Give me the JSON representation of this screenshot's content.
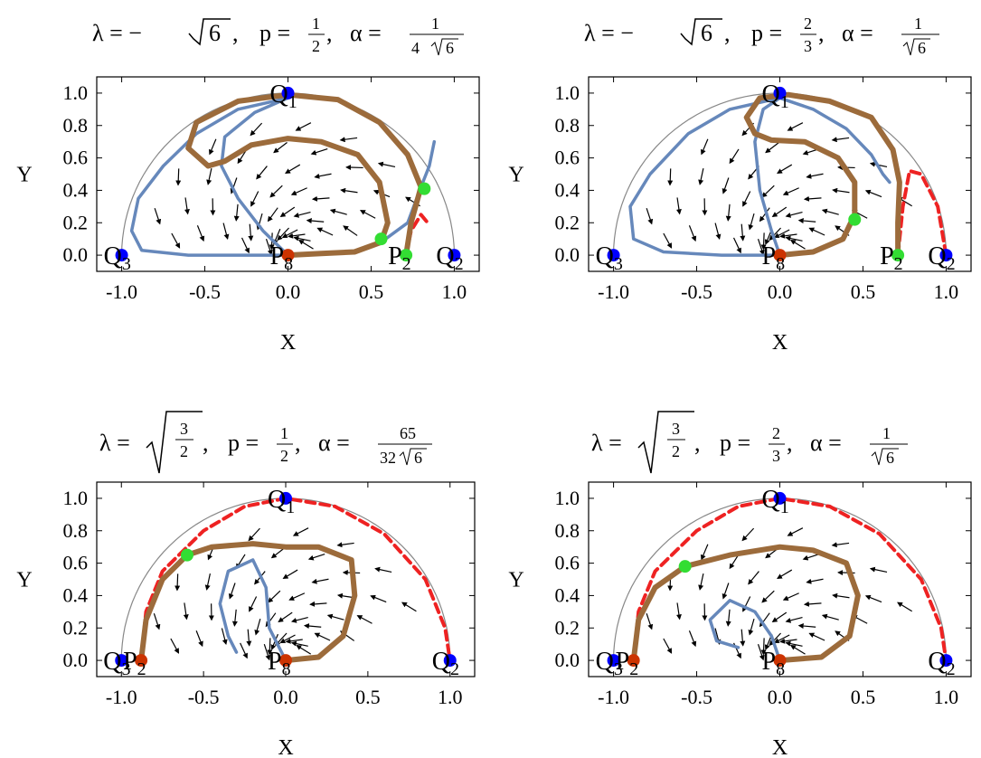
{
  "chart_data": [
    {
      "type": "streamplot",
      "title": {
        "lambda": "λ = −",
        "root": "6",
        "comma1": ",",
        "p": "p =",
        "p_num": "1",
        "p_den": "2",
        "comma2": ",",
        "alpha": "α =",
        "a_num": "1",
        "a_den_pre": "4",
        "a_den_root": "6"
      },
      "xlabel": "X",
      "ylabel": "Y",
      "xlim": [
        -1.15,
        1.15
      ],
      "ylim": [
        -0.1,
        1.1
      ],
      "xticks": [
        "-1.0",
        "-0.5",
        "0.0",
        "0.5",
        "1.0"
      ],
      "yticks": [
        "0.0",
        "0.2",
        "0.4",
        "0.6",
        "0.8",
        "1.0"
      ],
      "points": [
        {
          "label": "Q",
          "sub": "1",
          "x": 0.0,
          "y": 1.0,
          "color": "#0000ff"
        },
        {
          "label": "Q",
          "sub": "3",
          "x": -1.0,
          "y": 0.0,
          "color": "#0000ff"
        },
        {
          "label": "Q",
          "sub": "2",
          "x": 1.0,
          "y": 0.0,
          "color": "#0000ff"
        },
        {
          "label": "P",
          "sub": "8",
          "x": 0.0,
          "y": 0.0,
          "color": "#cc3300"
        },
        {
          "label": "P",
          "sub": "2",
          "x": 0.71,
          "y": 0.0,
          "color": "#33dd33"
        },
        {
          "label": "",
          "sub": "",
          "x": 0.56,
          "y": 0.1,
          "color": "#33dd33"
        },
        {
          "label": "",
          "sub": "",
          "x": 0.82,
          "y": 0.41,
          "color": "#33dd33"
        }
      ],
      "brown": [
        [
          0.0,
          0.0
        ],
        [
          0.2,
          0.01
        ],
        [
          0.4,
          0.02
        ],
        [
          0.56,
          0.08
        ],
        [
          0.6,
          0.2
        ],
        [
          0.55,
          0.45
        ],
        [
          0.42,
          0.62
        ],
        [
          0.2,
          0.7
        ],
        [
          0.0,
          0.72
        ],
        [
          -0.22,
          0.68
        ],
        [
          -0.38,
          0.58
        ],
        [
          -0.48,
          0.55
        ],
        [
          -0.6,
          0.66
        ],
        [
          -0.55,
          0.82
        ],
        [
          -0.3,
          0.95
        ],
        [
          0.0,
          0.99
        ],
        [
          0.3,
          0.96
        ],
        [
          0.55,
          0.82
        ],
        [
          0.72,
          0.62
        ],
        [
          0.8,
          0.42
        ],
        [
          0.74,
          0.2
        ],
        [
          0.71,
          0.0
        ]
      ],
      "blue": [
        [
          0.0,
          0.0
        ],
        [
          -0.3,
          0.0
        ],
        [
          -0.6,
          0.0
        ],
        [
          -0.88,
          0.03
        ],
        [
          -0.94,
          0.15
        ],
        [
          -0.9,
          0.35
        ],
        [
          -0.75,
          0.55
        ],
        [
          -0.55,
          0.75
        ],
        [
          -0.3,
          0.9
        ],
        [
          0.0,
          0.97
        ],
        [
          -0.2,
          0.88
        ],
        [
          -0.38,
          0.73
        ],
        [
          -0.4,
          0.55
        ],
        [
          -0.3,
          0.35
        ],
        [
          -0.15,
          0.15
        ],
        [
          0.0,
          0.0
        ]
      ],
      "blue2": [
        [
          0.56,
          0.08
        ],
        [
          0.72,
          0.2
        ],
        [
          0.8,
          0.42
        ],
        [
          0.85,
          0.55
        ],
        [
          0.88,
          0.7
        ]
      ],
      "red": [
        [
          0.71,
          0.0
        ],
        [
          0.74,
          0.15
        ],
        [
          0.8,
          0.25
        ],
        [
          0.84,
          0.2
        ]
      ]
    },
    {
      "type": "streamplot",
      "title": {
        "lambda": "λ = −",
        "root": "6",
        "comma1": ",",
        "p": "p =",
        "p_num": "2",
        "p_den": "3",
        "comma2": ",",
        "alpha": "α =",
        "a_num": "1",
        "a_den_pre": "",
        "a_den_root": "6"
      },
      "xlabel": "X",
      "ylabel": "Y",
      "xlim": [
        -1.15,
        1.15
      ],
      "ylim": [
        -0.1,
        1.1
      ],
      "xticks": [
        "-1.0",
        "-0.5",
        "0.0",
        "0.5",
        "1.0"
      ],
      "yticks": [
        "0.0",
        "0.2",
        "0.4",
        "0.6",
        "0.8",
        "1.0"
      ],
      "points": [
        {
          "label": "Q",
          "sub": "1",
          "x": 0.0,
          "y": 1.0,
          "color": "#0000ff"
        },
        {
          "label": "Q",
          "sub": "3",
          "x": -1.0,
          "y": 0.0,
          "color": "#0000ff"
        },
        {
          "label": "Q",
          "sub": "2",
          "x": 1.0,
          "y": 0.0,
          "color": "#0000ff"
        },
        {
          "label": "P",
          "sub": "8",
          "x": 0.0,
          "y": 0.0,
          "color": "#cc3300"
        },
        {
          "label": "P",
          "sub": "2",
          "x": 0.71,
          "y": 0.0,
          "color": "#33dd33"
        },
        {
          "label": "",
          "sub": "",
          "x": 0.45,
          "y": 0.22,
          "color": "#33dd33"
        }
      ],
      "brown": [
        [
          0.0,
          0.0
        ],
        [
          0.2,
          0.02
        ],
        [
          0.38,
          0.1
        ],
        [
          0.45,
          0.25
        ],
        [
          0.45,
          0.45
        ],
        [
          0.35,
          0.6
        ],
        [
          0.15,
          0.7
        ],
        [
          -0.05,
          0.71
        ],
        [
          -0.15,
          0.75
        ],
        [
          -0.2,
          0.85
        ],
        [
          -0.12,
          0.97
        ],
        [
          0.05,
          0.99
        ],
        [
          0.3,
          0.95
        ],
        [
          0.55,
          0.85
        ],
        [
          0.68,
          0.65
        ],
        [
          0.72,
          0.45
        ],
        [
          0.71,
          0.2
        ],
        [
          0.71,
          0.0
        ]
      ],
      "blue": [
        [
          0.0,
          0.0
        ],
        [
          -0.35,
          0.0
        ],
        [
          -0.7,
          0.02
        ],
        [
          -0.88,
          0.1
        ],
        [
          -0.9,
          0.3
        ],
        [
          -0.78,
          0.5
        ],
        [
          -0.55,
          0.75
        ],
        [
          -0.3,
          0.9
        ],
        [
          0.0,
          0.97
        ],
        [
          -0.1,
          0.9
        ],
        [
          -0.15,
          0.7
        ],
        [
          -0.12,
          0.4
        ],
        [
          -0.05,
          0.15
        ],
        [
          0.0,
          0.0
        ]
      ],
      "blue2": [
        [
          0.0,
          0.97
        ],
        [
          0.2,
          0.9
        ],
        [
          0.4,
          0.78
        ],
        [
          0.55,
          0.62
        ],
        [
          0.62,
          0.5
        ],
        [
          0.66,
          0.45
        ]
      ],
      "red": [
        [
          0.71,
          0.0
        ],
        [
          0.74,
          0.3
        ],
        [
          0.78,
          0.52
        ],
        [
          0.85,
          0.5
        ],
        [
          0.95,
          0.3
        ],
        [
          1.0,
          0.0
        ]
      ]
    },
    {
      "type": "streamplot",
      "title": {
        "lambda": "λ =",
        "root_num": "3",
        "root_den": "2",
        "comma1": ",",
        "p": "p =",
        "p_num": "1",
        "p_den": "2",
        "comma2": ",",
        "alpha": "α =",
        "a_num": "65",
        "a_den_pre": "32",
        "a_den_root": "6"
      },
      "xlabel": "X",
      "ylabel": "Y",
      "xlim": [
        -1.15,
        1.15
      ],
      "ylim": [
        -0.1,
        1.1
      ],
      "xticks": [
        "-1.0",
        "-0.5",
        "0.0",
        "0.5",
        "1.0"
      ],
      "yticks": [
        "0.0",
        "0.2",
        "0.4",
        "0.6",
        "0.8",
        "1.0"
      ],
      "points": [
        {
          "label": "Q",
          "sub": "1",
          "x": 0.0,
          "y": 1.0,
          "color": "#0000ff"
        },
        {
          "label": "Q",
          "sub": "3",
          "x": -1.0,
          "y": 0.0,
          "color": "#0000ff"
        },
        {
          "label": "Q",
          "sub": "2",
          "x": 1.0,
          "y": 0.0,
          "color": "#0000ff"
        },
        {
          "label": "P",
          "sub": "8",
          "x": 0.0,
          "y": 0.0,
          "color": "#cc3300"
        },
        {
          "label": "P",
          "sub": "2",
          "x": -0.88,
          "y": 0.0,
          "color": "#cc3300"
        },
        {
          "label": "",
          "sub": "",
          "x": -0.6,
          "y": 0.65,
          "color": "#33dd33"
        }
      ],
      "brown": [
        [
          0.0,
          0.0
        ],
        [
          0.2,
          0.02
        ],
        [
          0.35,
          0.15
        ],
        [
          0.42,
          0.4
        ],
        [
          0.4,
          0.62
        ],
        [
          0.2,
          0.7
        ],
        [
          0.0,
          0.7
        ],
        [
          -0.2,
          0.72
        ],
        [
          -0.45,
          0.7
        ],
        [
          -0.6,
          0.65
        ],
        [
          -0.75,
          0.5
        ],
        [
          -0.85,
          0.25
        ],
        [
          -0.88,
          0.0
        ]
      ],
      "blue": [
        [
          0.0,
          0.0
        ],
        [
          -0.1,
          0.2
        ],
        [
          -0.12,
          0.45
        ],
        [
          -0.2,
          0.62
        ],
        [
          -0.35,
          0.55
        ],
        [
          -0.4,
          0.35
        ],
        [
          -0.35,
          0.15
        ],
        [
          -0.3,
          0.05
        ]
      ],
      "blue2": [],
      "red": [
        [
          -0.88,
          0.0
        ],
        [
          -0.85,
          0.3
        ],
        [
          -0.75,
          0.55
        ],
        [
          -0.5,
          0.8
        ],
        [
          -0.25,
          0.95
        ],
        [
          0.0,
          1.0
        ],
        [
          0.3,
          0.95
        ],
        [
          0.6,
          0.78
        ],
        [
          0.85,
          0.5
        ],
        [
          0.97,
          0.2
        ],
        [
          1.0,
          0.0
        ]
      ]
    },
    {
      "type": "streamplot",
      "title": {
        "lambda": "λ =",
        "root_num": "3",
        "root_den": "2",
        "comma1": ",",
        "p": "p =",
        "p_num": "2",
        "p_den": "3",
        "comma2": ",",
        "alpha": "α =",
        "a_num": "1",
        "a_den_pre": "",
        "a_den_root": "6"
      },
      "xlabel": "X",
      "ylabel": "Y",
      "xlim": [
        -1.15,
        1.15
      ],
      "ylim": [
        -0.1,
        1.1
      ],
      "xticks": [
        "-1.0",
        "-0.5",
        "0.0",
        "0.5",
        "1.0"
      ],
      "yticks": [
        "0.0",
        "0.2",
        "0.4",
        "0.6",
        "0.8",
        "1.0"
      ],
      "points": [
        {
          "label": "Q",
          "sub": "1",
          "x": 0.0,
          "y": 1.0,
          "color": "#0000ff"
        },
        {
          "label": "Q",
          "sub": "3",
          "x": -1.0,
          "y": 0.0,
          "color": "#0000ff"
        },
        {
          "label": "Q",
          "sub": "2",
          "x": 1.0,
          "y": 0.0,
          "color": "#0000ff"
        },
        {
          "label": "P",
          "sub": "8",
          "x": 0.0,
          "y": 0.0,
          "color": "#cc3300"
        },
        {
          "label": "P",
          "sub": "2",
          "x": -0.88,
          "y": 0.0,
          "color": "#cc3300"
        },
        {
          "label": "",
          "sub": "",
          "x": -0.57,
          "y": 0.58,
          "color": "#33dd33"
        }
      ],
      "brown": [
        [
          0.0,
          0.0
        ],
        [
          0.25,
          0.02
        ],
        [
          0.42,
          0.15
        ],
        [
          0.47,
          0.4
        ],
        [
          0.4,
          0.6
        ],
        [
          0.2,
          0.68
        ],
        [
          0.0,
          0.7
        ],
        [
          -0.3,
          0.65
        ],
        [
          -0.57,
          0.58
        ],
        [
          -0.75,
          0.45
        ],
        [
          -0.85,
          0.25
        ],
        [
          -0.88,
          0.0
        ]
      ],
      "blue": [
        [
          0.0,
          0.0
        ],
        [
          -0.05,
          0.15
        ],
        [
          -0.15,
          0.3
        ],
        [
          -0.3,
          0.37
        ],
        [
          -0.42,
          0.25
        ],
        [
          -0.38,
          0.12
        ],
        [
          -0.25,
          0.08
        ]
      ],
      "blue2": [],
      "red": [
        [
          -0.88,
          0.0
        ],
        [
          -0.85,
          0.3
        ],
        [
          -0.75,
          0.55
        ],
        [
          -0.5,
          0.8
        ],
        [
          -0.25,
          0.95
        ],
        [
          0.0,
          1.0
        ],
        [
          0.3,
          0.95
        ],
        [
          0.6,
          0.78
        ],
        [
          0.85,
          0.5
        ],
        [
          0.97,
          0.2
        ],
        [
          1.0,
          0.0
        ]
      ]
    }
  ]
}
